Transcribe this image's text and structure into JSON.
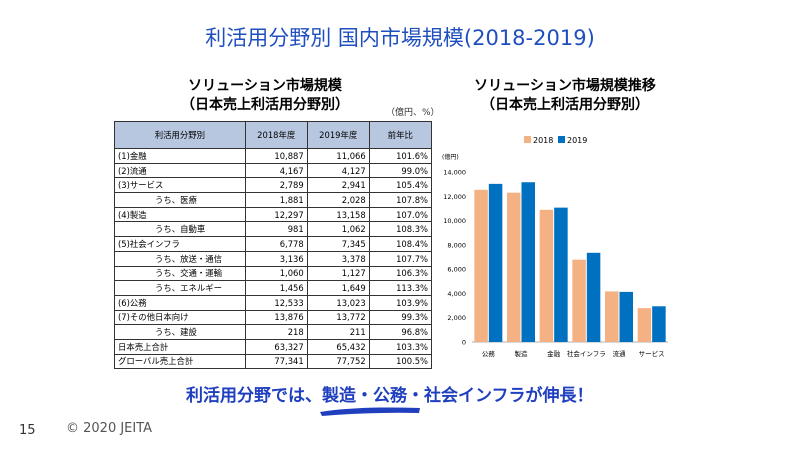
{
  "slide": {
    "title": "利活用分野別 国内市場規模(2018-2019)",
    "page_number": "15",
    "copyright": "© 2020 JEITA",
    "conclusion": "利活用分野では、製造・公務・社会インフラが伸長！"
  },
  "table": {
    "heading_line1": "ソリューション市場規模",
    "heading_line2": "（日本売上利活用分野別）",
    "unit": "（億円、%）",
    "headers": [
      "利活用分野別",
      "2018年度",
      "2019年度",
      "前年比"
    ],
    "rows": [
      {
        "label": "(1)金融",
        "v2018": "10,887",
        "v2019": "11,066",
        "ratio": "101.6%",
        "sub": false
      },
      {
        "label": "(2)流通",
        "v2018": "4,167",
        "v2019": "4,127",
        "ratio": "99.0%",
        "sub": false
      },
      {
        "label": "(3)サービス",
        "v2018": "2,789",
        "v2019": "2,941",
        "ratio": "105.4%",
        "sub": false
      },
      {
        "label": "うち、医療",
        "v2018": "1,881",
        "v2019": "2,028",
        "ratio": "107.8%",
        "sub": true
      },
      {
        "label": "(4)製造",
        "v2018": "12,297",
        "v2019": "13,158",
        "ratio": "107.0%",
        "sub": false
      },
      {
        "label": "うち、自動車",
        "v2018": "981",
        "v2019": "1,062",
        "ratio": "108.3%",
        "sub": true
      },
      {
        "label": "(5)社会インフラ",
        "v2018": "6,778",
        "v2019": "7,345",
        "ratio": "108.4%",
        "sub": false
      },
      {
        "label": "うち、放送・通信",
        "v2018": "3,136",
        "v2019": "3,378",
        "ratio": "107.7%",
        "sub": true
      },
      {
        "label": "うち、交通・運輸",
        "v2018": "1,060",
        "v2019": "1,127",
        "ratio": "106.3%",
        "sub": true
      },
      {
        "label": "うち、エネルギー",
        "v2018": "1,456",
        "v2019": "1,649",
        "ratio": "113.3%",
        "sub": true
      },
      {
        "label": "(6)公務",
        "v2018": "12,533",
        "v2019": "13,023",
        "ratio": "103.9%",
        "sub": false
      },
      {
        "label": "(7)その他日本向け",
        "v2018": "13,876",
        "v2019": "13,772",
        "ratio": "99.3%",
        "sub": false
      },
      {
        "label": "うち、建設",
        "v2018": "218",
        "v2019": "211",
        "ratio": "96.8%",
        "sub": true
      },
      {
        "label": "日本売上合計",
        "v2018": "63,327",
        "v2019": "65,432",
        "ratio": "103.3%",
        "sub": false
      },
      {
        "label": "グローバル売上合計",
        "v2018": "77,341",
        "v2019": "77,752",
        "ratio": "100.5%",
        "sub": false
      }
    ]
  },
  "chart_heading_line1": "ソリューション市場規模推移",
  "chart_heading_line2": "（日本売上利活用分野別）",
  "chart_data": {
    "type": "bar",
    "unit_label": "(億円)",
    "categories": [
      "公務",
      "製造",
      "金融",
      "社会インフラ",
      "流通",
      "サービス"
    ],
    "series": [
      {
        "name": "2018",
        "color": "#f4b183",
        "values": [
          12533,
          12297,
          10887,
          6778,
          4167,
          2789
        ]
      },
      {
        "name": "2019",
        "color": "#0070c0",
        "values": [
          13023,
          13158,
          11066,
          7345,
          4127,
          2941
        ]
      }
    ],
    "ylim": [
      0,
      14000
    ],
    "yticks": [
      0,
      2000,
      4000,
      6000,
      8000,
      10000,
      12000,
      14000
    ],
    "ytick_labels": [
      "0",
      "2,000",
      "4,000",
      "6,000",
      "8,000",
      "10,000",
      "12,000",
      "14,000"
    ],
    "grid": false,
    "legend": "top"
  }
}
